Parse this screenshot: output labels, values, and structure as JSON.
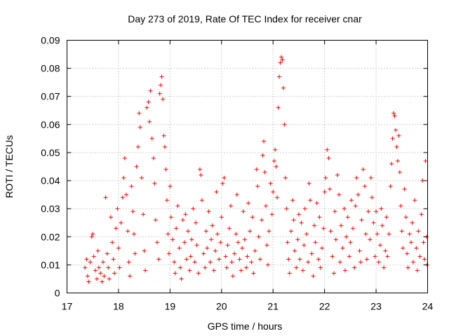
{
  "chart_data": {
    "type": "scatter",
    "title": "Day 273 of 2019, Rate Of TEC Index for receiver cnar",
    "xlabel": "GPS time / hours",
    "ylabel": "ROTI / TECUs",
    "xlim": [
      17,
      24
    ],
    "ylim": [
      0,
      0.09
    ],
    "xticks": [
      "17",
      "18",
      "19",
      "20",
      "21",
      "22",
      "23",
      "24"
    ],
    "yticks": [
      "0",
      "0.01",
      "0.02",
      "0.03",
      "0.04",
      "0.05",
      "0.06",
      "0.07",
      "0.08",
      "0.09"
    ],
    "grid": true,
    "marker": "+",
    "color": "#ff0000",
    "series": [
      {
        "name": "ROTI",
        "points": [
          [
            17.35,
            0.009
          ],
          [
            17.38,
            0.012
          ],
          [
            17.4,
            0.006
          ],
          [
            17.42,
            0.004
          ],
          [
            17.45,
            0.011
          ],
          [
            17.48,
            0.02
          ],
          [
            17.5,
            0.021
          ],
          [
            17.52,
            0.013
          ],
          [
            17.55,
            0.008
          ],
          [
            17.58,
            0.005
          ],
          [
            17.6,
            0.015
          ],
          [
            17.62,
            0.009
          ],
          [
            17.65,
            0.007
          ],
          [
            17.68,
            0.004
          ],
          [
            17.7,
            0.011
          ],
          [
            17.72,
            0.006
          ],
          [
            17.75,
            0.034
          ],
          [
            17.78,
            0.014
          ],
          [
            17.8,
            0.009
          ],
          [
            17.82,
            0.005
          ],
          [
            17.85,
            0.027
          ],
          [
            17.88,
            0.018
          ],
          [
            17.9,
            0.012
          ],
          [
            17.92,
            0.007
          ],
          [
            17.95,
            0.023
          ],
          [
            17.98,
            0.03
          ],
          [
            18.0,
            0.016
          ],
          [
            18.02,
            0.009
          ],
          [
            18.05,
            0.025
          ],
          [
            18.08,
            0.034
          ],
          [
            18.1,
            0.041
          ],
          [
            18.12,
            0.048
          ],
          [
            18.15,
            0.035
          ],
          [
            18.18,
            0.022
          ],
          [
            18.2,
            0.011
          ],
          [
            18.22,
            0.006
          ],
          [
            18.25,
            0.038
          ],
          [
            18.28,
            0.029
          ],
          [
            18.3,
            0.021
          ],
          [
            18.32,
            0.014
          ],
          [
            18.35,
            0.045
          ],
          [
            18.38,
            0.052
          ],
          [
            18.4,
            0.064
          ],
          [
            18.42,
            0.059
          ],
          [
            18.45,
            0.041
          ],
          [
            18.48,
            0.028
          ],
          [
            18.5,
            0.015
          ],
          [
            18.52,
            0.008
          ],
          [
            18.55,
            0.066
          ],
          [
            18.58,
            0.068
          ],
          [
            18.6,
            0.061
          ],
          [
            18.62,
            0.072
          ],
          [
            18.65,
            0.055
          ],
          [
            18.68,
            0.048
          ],
          [
            18.7,
            0.039
          ],
          [
            18.72,
            0.026
          ],
          [
            18.75,
            0.018
          ],
          [
            18.78,
            0.012
          ],
          [
            18.8,
            0.071
          ],
          [
            18.82,
            0.074
          ],
          [
            18.84,
            0.077
          ],
          [
            18.86,
            0.069
          ],
          [
            18.88,
            0.056
          ],
          [
            18.9,
            0.052
          ],
          [
            18.92,
            0.044
          ],
          [
            18.94,
            0.033
          ],
          [
            18.96,
            0.021
          ],
          [
            18.98,
            0.014
          ],
          [
            19.0,
            0.038
          ],
          [
            19.02,
            0.027
          ],
          [
            19.05,
            0.019
          ],
          [
            19.08,
            0.011
          ],
          [
            19.1,
            0.007
          ],
          [
            19.12,
            0.023
          ],
          [
            19.15,
            0.031
          ],
          [
            19.18,
            0.016
          ],
          [
            19.2,
            0.009
          ],
          [
            19.22,
            0.005
          ],
          [
            19.25,
            0.026
          ],
          [
            19.28,
            0.018
          ],
          [
            19.3,
            0.028
          ],
          [
            19.32,
            0.012
          ],
          [
            19.35,
            0.022
          ],
          [
            19.38,
            0.008
          ],
          [
            19.4,
            0.013
          ],
          [
            19.42,
            0.019
          ],
          [
            19.45,
            0.03
          ],
          [
            19.48,
            0.011
          ],
          [
            19.5,
            0.025
          ],
          [
            19.52,
            0.017
          ],
          [
            19.55,
            0.007
          ],
          [
            19.58,
            0.044
          ],
          [
            19.6,
            0.042
          ],
          [
            19.62,
            0.033
          ],
          [
            19.65,
            0.014
          ],
          [
            19.68,
            0.009
          ],
          [
            19.7,
            0.022
          ],
          [
            19.72,
            0.016
          ],
          [
            19.75,
            0.029
          ],
          [
            19.78,
            0.011
          ],
          [
            19.8,
            0.019
          ],
          [
            19.82,
            0.024
          ],
          [
            19.85,
            0.008
          ],
          [
            19.88,
            0.015
          ],
          [
            19.9,
            0.036
          ],
          [
            19.92,
            0.021
          ],
          [
            19.95,
            0.012
          ],
          [
            19.98,
            0.018
          ],
          [
            20.0,
            0.027
          ],
          [
            20.02,
            0.039
          ],
          [
            20.05,
            0.041
          ],
          [
            20.08,
            0.013
          ],
          [
            20.1,
            0.009
          ],
          [
            20.12,
            0.017
          ],
          [
            20.15,
            0.023
          ],
          [
            20.18,
            0.031
          ],
          [
            20.2,
            0.011
          ],
          [
            20.22,
            0.006
          ],
          [
            20.25,
            0.014
          ],
          [
            20.28,
            0.021
          ],
          [
            20.3,
            0.035
          ],
          [
            20.32,
            0.018
          ],
          [
            20.35,
            0.012
          ],
          [
            20.38,
            0.008
          ],
          [
            20.4,
            0.016
          ],
          [
            20.42,
            0.029
          ],
          [
            20.45,
            0.019
          ],
          [
            20.48,
            0.009
          ],
          [
            20.5,
            0.013
          ],
          [
            20.52,
            0.032
          ],
          [
            20.55,
            0.022
          ],
          [
            20.58,
            0.011
          ],
          [
            20.6,
            0.027
          ],
          [
            20.62,
            0.007
          ],
          [
            20.65,
            0.015
          ],
          [
            20.68,
            0.044
          ],
          [
            20.7,
            0.038
          ],
          [
            20.72,
            0.02
          ],
          [
            20.75,
            0.012
          ],
          [
            20.78,
            0.026
          ],
          [
            20.8,
            0.049
          ],
          [
            20.82,
            0.054
          ],
          [
            20.84,
            0.043
          ],
          [
            20.86,
            0.031
          ],
          [
            20.88,
            0.017
          ],
          [
            20.9,
            0.01
          ],
          [
            20.92,
            0.022
          ],
          [
            20.95,
            0.039
          ],
          [
            20.98,
            0.028
          ],
          [
            21.0,
            0.036
          ],
          [
            21.02,
            0.047
          ],
          [
            21.04,
            0.051
          ],
          [
            21.06,
            0.045
          ],
          [
            21.08,
            0.034
          ],
          [
            21.1,
            0.066
          ],
          [
            21.12,
            0.077
          ],
          [
            21.14,
            0.082
          ],
          [
            21.16,
            0.084
          ],
          [
            21.18,
            0.083
          ],
          [
            21.2,
            0.073
          ],
          [
            21.22,
            0.06
          ],
          [
            21.24,
            0.041
          ],
          [
            21.26,
            0.03
          ],
          [
            21.28,
            0.018
          ],
          [
            21.3,
            0.012
          ],
          [
            21.32,
            0.007
          ],
          [
            21.35,
            0.022
          ],
          [
            21.38,
            0.033
          ],
          [
            21.4,
            0.026
          ],
          [
            21.42,
            0.015
          ],
          [
            21.45,
            0.009
          ],
          [
            21.48,
            0.019
          ],
          [
            21.5,
            0.028
          ],
          [
            21.52,
            0.012
          ],
          [
            21.55,
            0.025
          ],
          [
            21.58,
            0.008
          ],
          [
            21.6,
            0.017
          ],
          [
            21.62,
            0.03
          ],
          [
            21.65,
            0.021
          ],
          [
            21.68,
            0.011
          ],
          [
            21.7,
            0.039
          ],
          [
            21.72,
            0.033
          ],
          [
            21.75,
            0.014
          ],
          [
            21.78,
            0.006
          ],
          [
            21.8,
            0.024
          ],
          [
            21.82,
            0.018
          ],
          [
            21.85,
            0.032
          ],
          [
            21.88,
            0.012
          ],
          [
            21.9,
            0.027
          ],
          [
            21.92,
            0.009
          ],
          [
            21.95,
            0.016
          ],
          [
            21.98,
            0.023
          ],
          [
            22.0,
            0.036
          ],
          [
            22.02,
            0.041
          ],
          [
            22.05,
            0.051
          ],
          [
            22.08,
            0.048
          ],
          [
            22.1,
            0.037
          ],
          [
            22.12,
            0.022
          ],
          [
            22.15,
            0.013
          ],
          [
            22.18,
            0.007
          ],
          [
            22.2,
            0.029
          ],
          [
            22.22,
            0.019
          ],
          [
            22.25,
            0.042
          ],
          [
            22.28,
            0.035
          ],
          [
            22.3,
            0.011
          ],
          [
            22.32,
            0.024
          ],
          [
            22.35,
            0.016
          ],
          [
            22.38,
            0.03
          ],
          [
            22.4,
            0.008
          ],
          [
            22.42,
            0.02
          ],
          [
            22.45,
            0.027
          ],
          [
            22.48,
            0.013
          ],
          [
            22.5,
            0.018
          ],
          [
            22.52,
            0.033
          ],
          [
            22.55,
            0.023
          ],
          [
            22.58,
            0.009
          ],
          [
            22.6,
            0.031
          ],
          [
            22.62,
            0.041
          ],
          [
            22.65,
            0.035
          ],
          [
            22.68,
            0.015
          ],
          [
            22.7,
            0.011
          ],
          [
            22.72,
            0.026
          ],
          [
            22.75,
            0.044
          ],
          [
            22.78,
            0.038
          ],
          [
            22.8,
            0.021
          ],
          [
            22.82,
            0.012
          ],
          [
            22.85,
            0.029
          ],
          [
            22.88,
            0.019
          ],
          [
            22.9,
            0.041
          ],
          [
            22.92,
            0.034
          ],
          [
            22.95,
            0.025
          ],
          [
            22.98,
            0.013
          ],
          [
            23.0,
            0.029
          ],
          [
            23.02,
            0.021
          ],
          [
            23.05,
            0.011
          ],
          [
            23.08,
            0.017
          ],
          [
            23.1,
            0.03
          ],
          [
            23.12,
            0.024
          ],
          [
            23.15,
            0.009
          ],
          [
            23.18,
            0.015
          ],
          [
            23.2,
            0.027
          ],
          [
            23.22,
            0.013
          ],
          [
            23.25,
            0.021
          ],
          [
            23.28,
            0.038
          ],
          [
            23.3,
            0.046
          ],
          [
            23.32,
            0.055
          ],
          [
            23.34,
            0.064
          ],
          [
            23.36,
            0.063
          ],
          [
            23.38,
            0.058
          ],
          [
            23.4,
            0.052
          ],
          [
            23.42,
            0.047
          ],
          [
            23.44,
            0.056
          ],
          [
            23.46,
            0.043
          ],
          [
            23.48,
            0.031
          ],
          [
            23.5,
            0.022
          ],
          [
            23.52,
            0.016
          ],
          [
            23.55,
            0.037
          ],
          [
            23.58,
            0.027
          ],
          [
            23.6,
            0.014
          ],
          [
            23.62,
            0.009
          ],
          [
            23.65,
            0.021
          ],
          [
            23.68,
            0.018
          ],
          [
            23.7,
            0.025
          ],
          [
            23.72,
            0.011
          ],
          [
            23.75,
            0.033
          ],
          [
            23.78,
            0.016
          ],
          [
            23.8,
            0.008
          ],
          [
            23.82,
            0.022
          ],
          [
            23.85,
            0.013
          ],
          [
            23.88,
            0.028
          ],
          [
            23.9,
            0.04
          ],
          [
            23.92,
            0.018
          ],
          [
            23.94,
            0.012
          ],
          [
            23.96,
            0.047
          ],
          [
            23.98,
            0.02
          ],
          [
            23.99,
            0.01
          ]
        ]
      }
    ]
  }
}
